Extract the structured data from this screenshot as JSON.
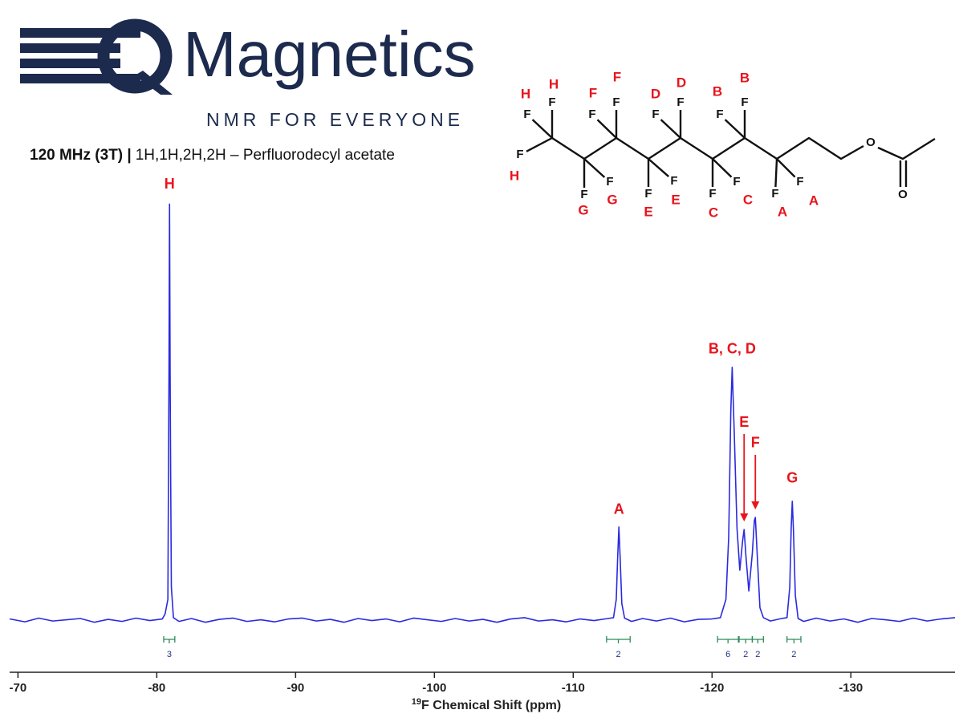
{
  "header": {
    "brand": "Magnetics",
    "tagline": "NMR FOR EVERYONE",
    "subtitle_bold": "120 MHz (3T) |",
    "subtitle": "1H,1H,2H,2H – Perfluorodecyl acetate"
  },
  "molecule": {
    "atoms": [
      "F",
      "F",
      "F",
      "F",
      "F",
      "F",
      "F",
      "F",
      "F",
      "F",
      "F",
      "F",
      "F",
      "F",
      "F",
      "F",
      "F",
      "O",
      "O"
    ],
    "assignments": [
      "H",
      "H",
      "H",
      "G",
      "G",
      "F",
      "F",
      "E",
      "E",
      "D",
      "D",
      "C",
      "C",
      "B",
      "B",
      "A",
      "A"
    ]
  },
  "chart_data": {
    "type": "line",
    "color": "#2a2ae0",
    "x": [
      -69.4,
      -70.5,
      -71.5,
      -72.5,
      -73.5,
      -74.5,
      -75.5,
      -76.5,
      -77.5,
      -78.5,
      -79.5,
      -80.4,
      -80.6,
      -80.8,
      -80.88,
      -80.92,
      -80.96,
      -81.0,
      -81.05,
      -81.2,
      -81.6,
      -82.5,
      -83.5,
      -84.5,
      -85.5,
      -86.5,
      -87.5,
      -88.5,
      -89.5,
      -90.5,
      -91.5,
      -92.5,
      -93.5,
      -94.5,
      -95.5,
      -96.5,
      -97.5,
      -98.5,
      -99.5,
      -100.5,
      -101.5,
      -102.5,
      -103.5,
      -104.5,
      -105.5,
      -106.5,
      -107.5,
      -108.5,
      -109.5,
      -110.5,
      -111.5,
      -112.5,
      -112.9,
      -113.1,
      -113.2,
      -113.29,
      -113.38,
      -113.5,
      -113.7,
      -114.2,
      -115,
      -116,
      -117,
      -118,
      -119,
      -120,
      -120.6,
      -121.0,
      -121.2,
      -121.35,
      -121.45,
      -121.6,
      -121.8,
      -122.0,
      -122.2,
      -122.31,
      -122.45,
      -122.65,
      -122.9,
      -123.05,
      -123.12,
      -123.25,
      -123.45,
      -123.7,
      -124.2,
      -125.0,
      -125.4,
      -125.6,
      -125.7,
      -125.78,
      -125.86,
      -126.0,
      -126.2,
      -126.6,
      -127.5,
      -128.5,
      -129.5,
      -130.5,
      -131.5,
      -132.5,
      -133.5,
      -134.5,
      -135.5,
      -136.5,
      -137.5
    ],
    "values": [
      0.3,
      -0.4,
      0.5,
      -0.2,
      0.1,
      0.4,
      -0.5,
      0.2,
      -0.3,
      0.5,
      -0.1,
      0.3,
      1.5,
      5,
      60,
      100,
      60,
      35,
      8,
      0.6,
      -0.3,
      0.4,
      -0.5,
      0.2,
      0.5,
      -0.3,
      0.1,
      -0.4,
      0.3,
      0.5,
      -0.2,
      0.2,
      -0.5,
      0.4,
      -0.1,
      0.3,
      -0.4,
      0.5,
      0.1,
      -0.3,
      0.4,
      -0.2,
      0.2,
      -0.5,
      0.3,
      0.6,
      -0.2,
      0.1,
      -0.4,
      0.3,
      -0.1,
      0.4,
      0.6,
      5,
      15,
      22.4,
      15,
      4,
      0.5,
      -0.3,
      0.4,
      -0.2,
      0.5,
      -0.4,
      0.2,
      0.3,
      0.6,
      5,
      20,
      50,
      60.8,
      45,
      22,
      12,
      19,
      21.8,
      15,
      7,
      16,
      24,
      24.7,
      16,
      3,
      0.6,
      -0.2,
      0.4,
      0.6,
      8,
      22,
      28.6,
      22,
      6,
      0.4,
      -0.3,
      0.5,
      -0.2,
      0.3,
      -0.5,
      0.4,
      0.1,
      -0.3,
      0.5,
      -0.2,
      0.3,
      0.6
    ],
    "xlim": [
      -69.4,
      -137.5
    ],
    "ylim": [
      -2.3,
      110.5
    ],
    "xticks": [
      -70,
      -80,
      -90,
      -100,
      -110,
      -120,
      -130
    ],
    "xlabel": {
      "sup": "19",
      "text": "F Chemical Shift (ppm)"
    },
    "annotations": [
      {
        "text": "H",
        "x": -80.92,
        "y": 100
      },
      {
        "text": "A",
        "x": -113.29,
        "y": 22.4
      },
      {
        "text": "B, C, D",
        "x": -121.45,
        "y": 60.8
      },
      {
        "text": "E",
        "x": -122.31,
        "y": 21.8,
        "arrow": true
      },
      {
        "text": "F",
        "x": -123.12,
        "y": 24.7,
        "arrow": true
      },
      {
        "text": "G",
        "x": -125.78,
        "y": 28.6
      }
    ],
    "annotation_color": "#e8141c",
    "integrals": [
      {
        "from": -80.5,
        "to": -81.3,
        "value": 3
      },
      {
        "from": -112.4,
        "to": -114.1,
        "value": 2
      },
      {
        "from": -120.4,
        "to": -121.9,
        "value": 6
      },
      {
        "from": -121.95,
        "to": -122.9,
        "value": 2
      },
      {
        "from": -122.9,
        "to": -123.7,
        "value": 2
      },
      {
        "from": -125.4,
        "to": -126.4,
        "value": 2
      }
    ],
    "integral_color": "#2e8b57"
  }
}
